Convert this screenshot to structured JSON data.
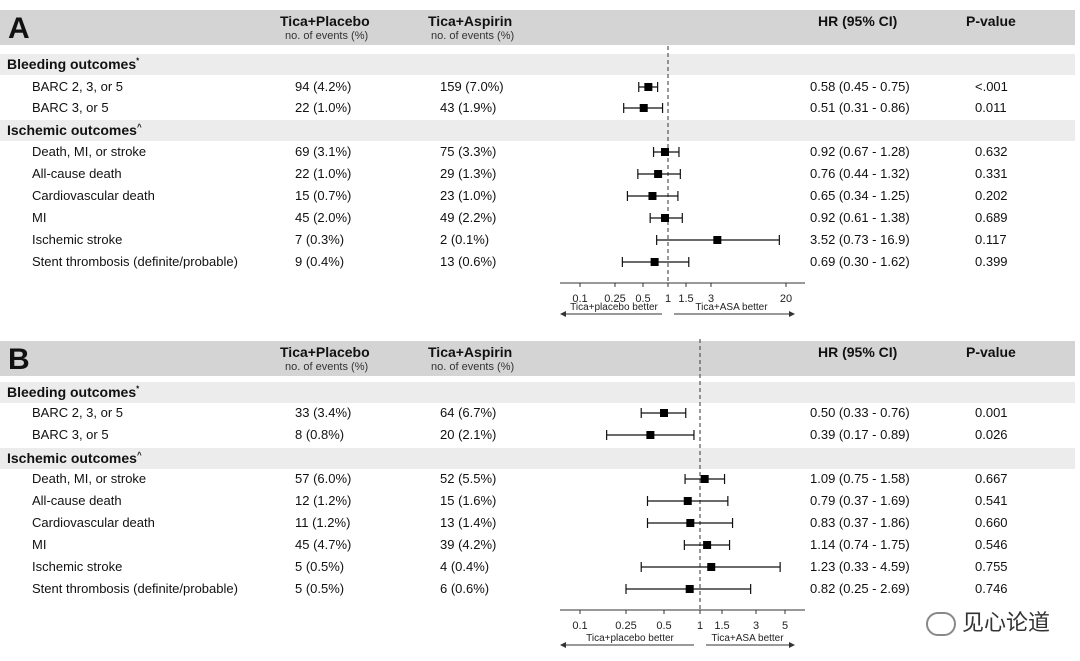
{
  "header": {
    "col1_title": "Tica+Placebo",
    "col1_sub": "no. of events (%)",
    "col2_title": "Tica+Aspirin",
    "col2_sub": "no. of events (%)",
    "hr_title": "HR (95% CI)",
    "p_title": "P-value"
  },
  "sections": {
    "bleeding": "Bleeding outcomes",
    "bleeding_mark": "*",
    "ischemic": "Ischemic outcomes",
    "ischemic_mark": "^"
  },
  "watermark": "见心论道",
  "chart_data": [
    {
      "type": "forest",
      "panel": "A",
      "scale": "log",
      "xlim": [
        0.05,
        30
      ],
      "reference": 1,
      "xticks": [
        "0.1",
        "0.25",
        "0.5",
        "1",
        "1.5",
        "3",
        "20"
      ],
      "left_label": "Tica+placebo better",
      "right_label": "Tica+ASA better",
      "rows": [
        {
          "label": "BARC 2, 3, or 5",
          "col1": "94 (4.2%)",
          "col2": "159 (7.0%)",
          "hr": 0.58,
          "lo": 0.45,
          "hi": 0.75,
          "ci_text": "0.58 (0.45 - 0.75)",
          "p": "<.001"
        },
        {
          "label": "BARC 3, or 5",
          "col1": "22 (1.0%)",
          "col2": "43 (1.9%)",
          "hr": 0.51,
          "lo": 0.31,
          "hi": 0.86,
          "ci_text": "0.51 (0.31 - 0.86)",
          "p": "0.011"
        },
        {
          "label": "Death, MI, or stroke",
          "col1": "69 (3.1%)",
          "col2": "75 (3.3%)",
          "hr": 0.92,
          "lo": 0.67,
          "hi": 1.28,
          "ci_text": "0.92 (0.67 - 1.28)",
          "p": "0.632"
        },
        {
          "label": "All-cause death",
          "col1": "22 (1.0%)",
          "col2": "29 (1.3%)",
          "hr": 0.76,
          "lo": 0.44,
          "hi": 1.32,
          "ci_text": "0.76 (0.44 - 1.32)",
          "p": "0.331"
        },
        {
          "label": "Cardiovascular death",
          "col1": "15 (0.7%)",
          "col2": "23 (1.0%)",
          "hr": 0.65,
          "lo": 0.34,
          "hi": 1.25,
          "ci_text": "0.65 (0.34 - 1.25)",
          "p": "0.202"
        },
        {
          "label": "MI",
          "col1": "45 (2.0%)",
          "col2": "49 (2.2%)",
          "hr": 0.92,
          "lo": 0.61,
          "hi": 1.38,
          "ci_text": "0.92 (0.61 - 1.38)",
          "p": "0.689"
        },
        {
          "label": "Ischemic stroke",
          "col1": "7 (0.3%)",
          "col2": "2 (0.1%)",
          "hr": 3.52,
          "lo": 0.73,
          "hi": 16.9,
          "ci_text": "3.52 (0.73 - 16.9)",
          "p": "0.117"
        },
        {
          "label": "Stent thrombosis (definite/probable)",
          "col1": "9 (0.4%)",
          "col2": "13 (0.6%)",
          "hr": 0.69,
          "lo": 0.3,
          "hi": 1.62,
          "ci_text": "0.69 (0.30 - 1.62)",
          "p": "0.399"
        }
      ]
    },
    {
      "type": "forest",
      "panel": "B",
      "scale": "log",
      "xlim": [
        0.06,
        7
      ],
      "reference": 1,
      "xticks": [
        "0.1",
        "0.25",
        "0.5",
        "1",
        "1.5",
        "3",
        "5"
      ],
      "left_label": "Tica+placebo better",
      "right_label": "Tica+ASA better",
      "rows": [
        {
          "label": "BARC 2, 3, or 5",
          "col1": "33 (3.4%)",
          "col2": "64 (6.7%)",
          "hr": 0.5,
          "lo": 0.33,
          "hi": 0.76,
          "ci_text": "0.50 (0.33 - 0.76)",
          "p": "0.001"
        },
        {
          "label": "BARC 3, or 5",
          "col1": "8 (0.8%)",
          "col2": "20 (2.1%)",
          "hr": 0.39,
          "lo": 0.17,
          "hi": 0.89,
          "ci_text": "0.39 (0.17 - 0.89)",
          "p": "0.026"
        },
        {
          "label": "Death, MI, or stroke",
          "col1": "57 (6.0%)",
          "col2": "52 (5.5%)",
          "hr": 1.09,
          "lo": 0.75,
          "hi": 1.58,
          "ci_text": "1.09 (0.75 - 1.58)",
          "p": "0.667"
        },
        {
          "label": "All-cause death",
          "col1": "12 (1.2%)",
          "col2": "15 (1.6%)",
          "hr": 0.79,
          "lo": 0.37,
          "hi": 1.69,
          "ci_text": "0.79 (0.37 - 1.69)",
          "p": "0.541"
        },
        {
          "label": "Cardiovascular death",
          "col1": "11 (1.2%)",
          "col2": "13 (1.4%)",
          "hr": 0.83,
          "lo": 0.37,
          "hi": 1.86,
          "ci_text": "0.83 (0.37 - 1.86)",
          "p": "0.660"
        },
        {
          "label": "MI",
          "col1": "45 (4.7%)",
          "col2": "39 (4.2%)",
          "hr": 1.14,
          "lo": 0.74,
          "hi": 1.75,
          "ci_text": "1.14 (0.74 - 1.75)",
          "p": "0.546"
        },
        {
          "label": "Ischemic stroke",
          "col1": "5 (0.5%)",
          "col2": "4 (0.4%)",
          "hr": 1.23,
          "lo": 0.33,
          "hi": 4.59,
          "ci_text": "1.23 (0.33 - 4.59)",
          "p": "0.755"
        },
        {
          "label": "Stent thrombosis (definite/probable)",
          "col1": "5 (0.5%)",
          "col2": "6 (0.6%)",
          "hr": 0.82,
          "lo": 0.25,
          "hi": 2.69,
          "ci_text": "0.82 (0.25 - 2.69)",
          "p": "0.746"
        }
      ]
    }
  ]
}
